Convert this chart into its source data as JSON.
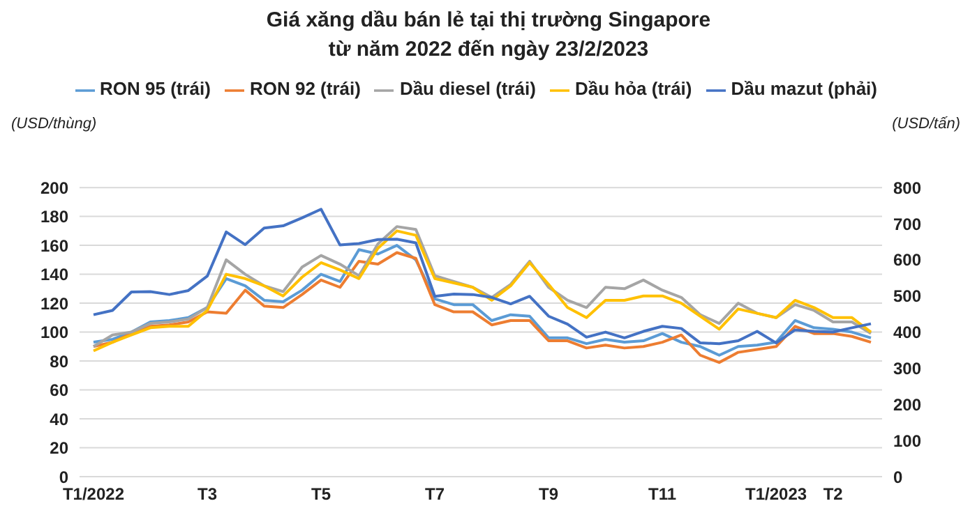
{
  "chart_data": {
    "type": "line",
    "title": "Giá xăng dầu bán lẻ tại thị trường Singapore\ntừ năm 2022 đến ngày 23/2/2023",
    "ylabel": "(USD/thùng)",
    "y2label": "(USD/tấn)",
    "categories": [
      "T1/2022",
      null,
      null,
      null,
      null,
      null,
      "T3",
      null,
      null,
      null,
      null,
      null,
      "T5",
      null,
      null,
      null,
      null,
      null,
      "T7",
      null,
      null,
      null,
      null,
      null,
      "T9",
      null,
      null,
      null,
      null,
      null,
      "T11",
      null,
      null,
      null,
      null,
      null,
      "T1/2023",
      null,
      null,
      "T2",
      null,
      null
    ],
    "series": [
      {
        "name": "RON 95 (trái)",
        "color": "#5b9bd5",
        "values": [
          93,
          95,
          100,
          107,
          108,
          110,
          117,
          137,
          132,
          122,
          121,
          129,
          140,
          135,
          157,
          154,
          160,
          150,
          123,
          119,
          119,
          108,
          112,
          111,
          96,
          96,
          92,
          95,
          93,
          94,
          99,
          93,
          90,
          84,
          90,
          91,
          93,
          108,
          103,
          102,
          100,
          96
        ]
      },
      {
        "name": "RON 92 (trái)",
        "color": "#ed7d31",
        "values": [
          90,
          93,
          99,
          104,
          105,
          107,
          114,
          113,
          129,
          118,
          117,
          126,
          136,
          131,
          149,
          147,
          155,
          151,
          119,
          114,
          114,
          105,
          108,
          108,
          94,
          94,
          89,
          91,
          89,
          90,
          93,
          98,
          84,
          79,
          86,
          88,
          90,
          104,
          99,
          99,
          97,
          93
        ]
      },
      {
        "name": "Dầu diesel (trái)",
        "color": "#a5a5a5",
        "values": [
          90,
          98,
          100,
          106,
          107,
          109,
          117,
          150,
          140,
          132,
          128,
          145,
          153,
          147,
          139,
          161,
          173,
          171,
          139,
          135,
          131,
          124,
          133,
          149,
          131,
          122,
          117,
          131,
          130,
          136,
          129,
          124,
          112,
          106,
          120,
          113,
          110,
          119,
          115,
          107,
          107,
          99
        ]
      },
      {
        "name": "Dầu hỏa (trái)",
        "color": "#ffc000",
        "values": [
          87,
          93,
          98,
          103,
          104,
          104,
          115,
          140,
          137,
          132,
          125,
          138,
          148,
          143,
          137,
          158,
          170,
          167,
          137,
          134,
          131,
          122,
          132,
          148,
          133,
          117,
          110,
          122,
          122,
          125,
          125,
          120,
          111,
          102,
          116,
          113,
          110,
          122,
          117,
          110,
          110,
          100
        ]
      },
      {
        "name": "Dầu mazut (phải)",
        "color": "#4472c4",
        "axis": "y2",
        "values": [
          448,
          460,
          511,
          512,
          504,
          515,
          555,
          677,
          642,
          688,
          694,
          716,
          740,
          641,
          645,
          656,
          657,
          647,
          499,
          505,
          504,
          496,
          478,
          499,
          444,
          422,
          386,
          400,
          384,
          402,
          416,
          410,
          370,
          368,
          376,
          402,
          370,
          406,
          402,
          400,
          412,
          423
        ]
      }
    ],
    "ylim": [
      0,
      200
    ],
    "yticks": [
      0,
      20,
      40,
      60,
      80,
      100,
      120,
      140,
      160,
      180,
      200
    ],
    "y2lim": [
      0,
      800
    ],
    "y2ticks": [
      0,
      100,
      200,
      300,
      400,
      500,
      600,
      700,
      800
    ],
    "grid": "y",
    "legend": "top"
  }
}
